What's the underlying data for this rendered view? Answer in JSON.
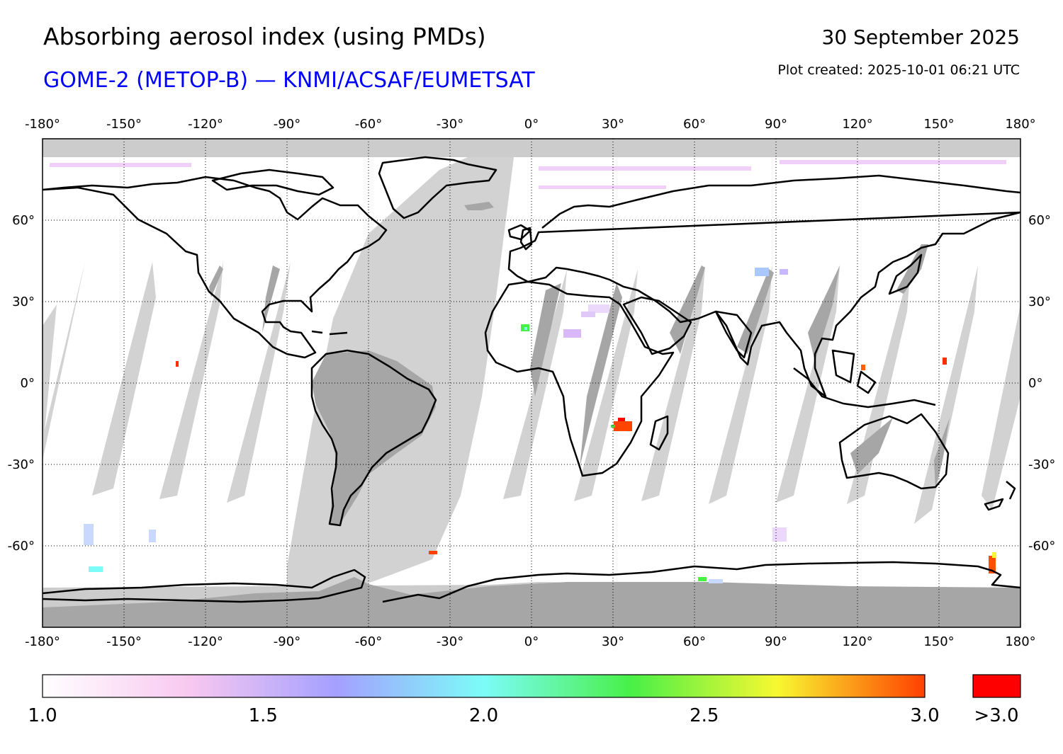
{
  "header": {
    "title": "Absorbing aerosol index (using PMDs)",
    "subtitle": "GOME-2 (METOP-B) — KNMI/ACSAF/EUMETSAT",
    "date": "30 September 2025",
    "created": "Plot created: 2025-10-01 06:21 UTC"
  },
  "axes": {
    "lon_ticks": [
      -180,
      -150,
      -120,
      -90,
      -60,
      -30,
      0,
      30,
      60,
      90,
      120,
      150,
      180
    ],
    "lat_ticks": [
      60,
      30,
      0,
      -30,
      -60
    ],
    "lon_range": [
      -180,
      180
    ],
    "lat_range": [
      -90,
      90
    ]
  },
  "colorbar": {
    "min": 1.0,
    "max": 3.0,
    "ticks": [
      "1.0",
      "1.5",
      "2.0",
      "2.5",
      "3.0"
    ],
    "overflow_label": ">3.0",
    "overflow_color": "#ff0000",
    "stops": [
      "#ffffff",
      "#f8c8f0",
      "#a4a0ff",
      "#7cfcf8",
      "#48f048",
      "#f8f830",
      "#ff4000"
    ]
  },
  "colors": {
    "no_data": "#cccccc",
    "land_no_data": "#a6a6a6",
    "coastline": "#000000"
  }
}
